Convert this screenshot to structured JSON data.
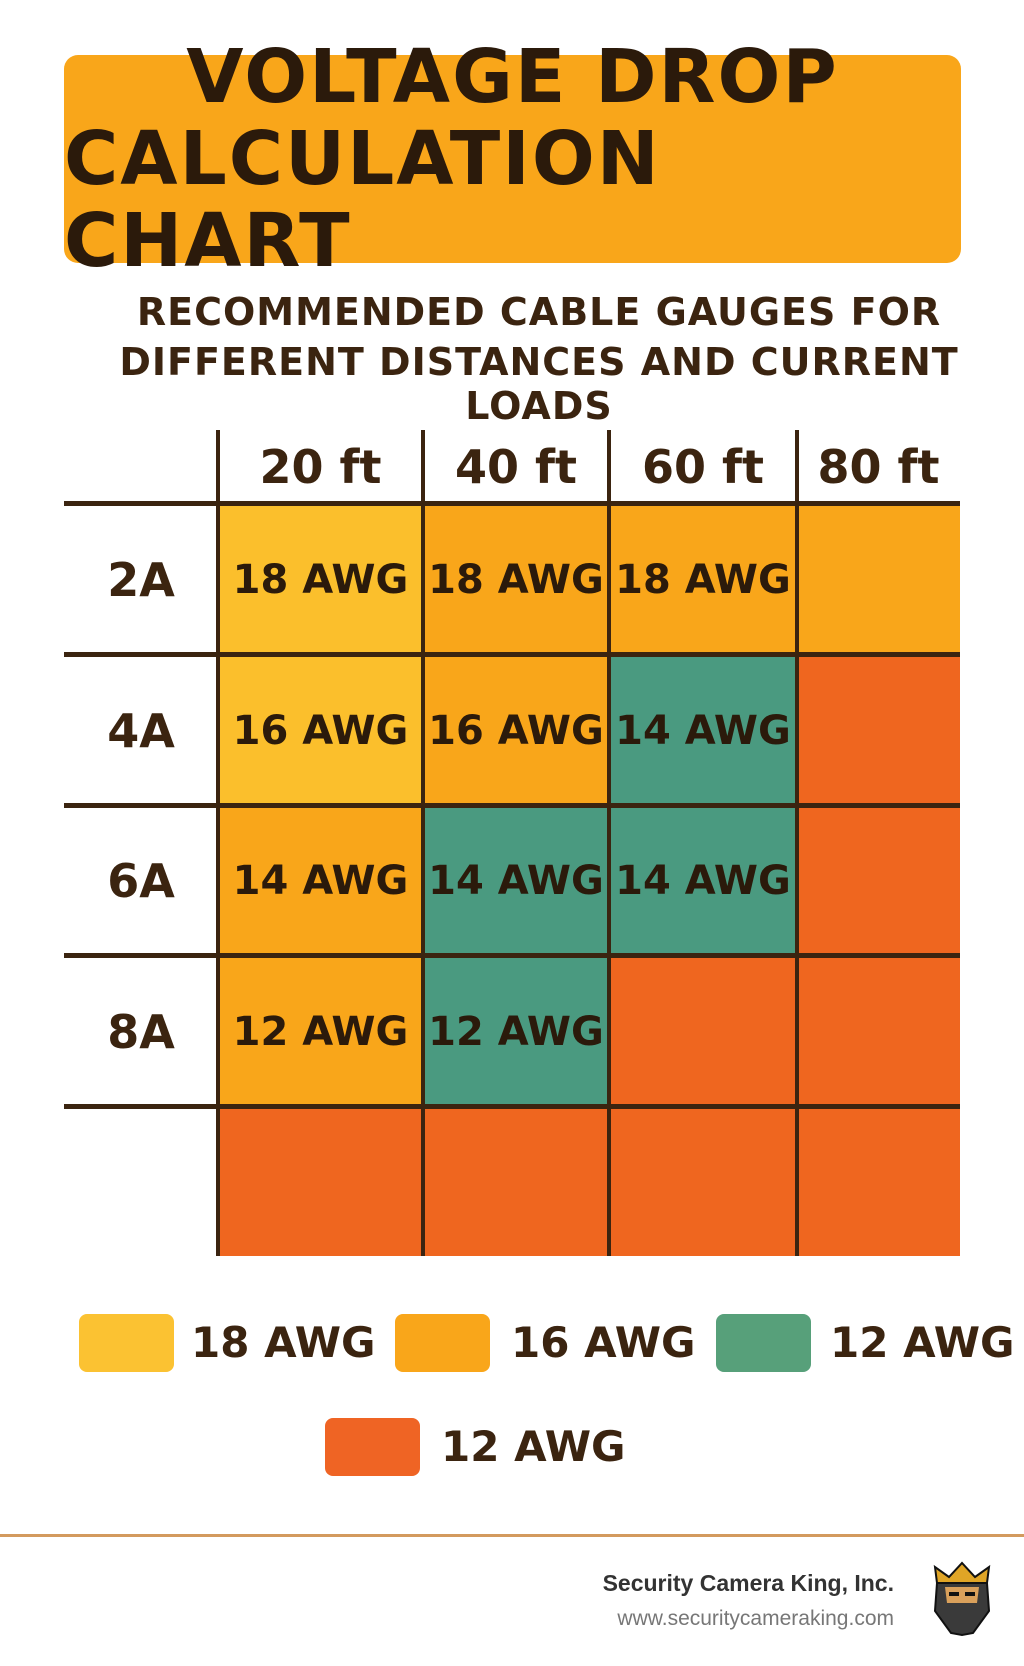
{
  "chart_data": {
    "type": "table",
    "title": "VOLTAGE DROP CALCULATION CHART",
    "title_lines": [
      "VOLTAGE DROP",
      "CALCULATION CHART"
    ],
    "subtitle_lines": [
      "RECOMMENDED CABLE GAUGES FOR",
      "DIFFERENT DISTANCES AND CURRENT LOADS"
    ],
    "columns": [
      "20 ft",
      "40 ft",
      "60 ft",
      "80 ft"
    ],
    "rows": [
      {
        "label": "2A",
        "cells": [
          {
            "text": "18 AWG",
            "cat": 0
          },
          {
            "text": "18 AWG",
            "cat": 1
          },
          {
            "text": "18 AWG",
            "cat": 1
          },
          {
            "text": "",
            "cat": 1
          }
        ]
      },
      {
        "label": "4A",
        "cells": [
          {
            "text": "16 AWG",
            "cat": 0
          },
          {
            "text": "16 AWG",
            "cat": 1
          },
          {
            "text": "14 AWG",
            "cat": 2
          },
          {
            "text": "",
            "cat": 3
          }
        ]
      },
      {
        "label": "6A",
        "cells": [
          {
            "text": "14 AWG",
            "cat": 1
          },
          {
            "text": "14 AWG",
            "cat": 2
          },
          {
            "text": "14 AWG",
            "cat": 2
          },
          {
            "text": "",
            "cat": 3
          }
        ]
      },
      {
        "label": "8A",
        "cells": [
          {
            "text": "12 AWG",
            "cat": 1
          },
          {
            "text": "12 AWG",
            "cat": 2
          },
          {
            "text": "",
            "cat": 3
          },
          {
            "text": "",
            "cat": 3
          }
        ]
      },
      {
        "label": "",
        "cells": [
          {
            "text": "",
            "cat": 3
          },
          {
            "text": "",
            "cat": 3
          },
          {
            "text": "",
            "cat": 3
          },
          {
            "text": "",
            "cat": 3
          }
        ]
      }
    ],
    "cell_colors": [
      "#fbbf2c",
      "#f9a61a",
      "#4a9a80",
      "#ef661f"
    ],
    "legend": [
      {
        "label": "18 AWG",
        "color": "#fbc232"
      },
      {
        "label": "16 AWG",
        "color": "#f9a61a"
      },
      {
        "label": "12 AWG",
        "color": "#57a07a"
      },
      {
        "label": "12 AWG",
        "color": "#ef6424"
      }
    ]
  },
  "footer": {
    "company": "Security Camera King, Inc.",
    "url": "www.securitycameraking.com"
  }
}
